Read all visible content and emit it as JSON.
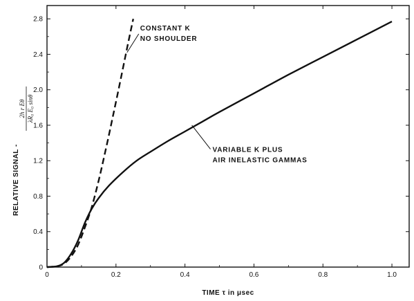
{
  "chart_data": {
    "type": "line",
    "xlabel": "TIME τ in μsec",
    "ylabel": "RELATIVE SIGNAL -",
    "ylabel_formula": {
      "numerator": "2h r Eθ",
      "denominator": "λR₀ E₀ sinθ"
    },
    "xlim": [
      0,
      1.05
    ],
    "ylim": [
      0,
      2.95
    ],
    "x_ticks": [
      "0",
      "0.2",
      "0.4",
      "0.6",
      "0.8",
      "1.0"
    ],
    "y_ticks": [
      "0",
      "0.4",
      "0.8",
      "1.2",
      "1.6",
      "2.0",
      "2.4",
      "2.8"
    ],
    "grid": false,
    "series": [
      {
        "name": "CONSTANT K NO SHOULDER",
        "style": "dashed",
        "x": [
          0,
          0.03,
          0.05,
          0.07,
          0.09,
          0.11,
          0.13,
          0.15,
          0.17,
          0.19,
          0.21,
          0.23,
          0.25
        ],
        "y": [
          0,
          0.01,
          0.04,
          0.12,
          0.25,
          0.45,
          0.68,
          0.98,
          1.32,
          1.68,
          2.05,
          2.43,
          2.8
        ]
      },
      {
        "name": "VARIABLE K PLUS AIR INELASTIC GAMMAS",
        "style": "solid",
        "x": [
          0,
          0.03,
          0.05,
          0.07,
          0.09,
          0.11,
          0.13,
          0.15,
          0.18,
          0.22,
          0.26,
          0.3,
          0.35,
          0.4,
          0.45,
          0.5,
          0.6,
          0.7,
          0.8,
          0.9,
          1.0
        ],
        "y": [
          0,
          0.01,
          0.05,
          0.15,
          0.3,
          0.5,
          0.66,
          0.78,
          0.92,
          1.07,
          1.2,
          1.3,
          1.42,
          1.53,
          1.64,
          1.75,
          1.96,
          2.17,
          2.37,
          2.57,
          2.77
        ]
      }
    ],
    "annotations": [
      {
        "lines": [
          "CONSTANT  K",
          "NO SHOULDER"
        ],
        "points_to": [
          0.23,
          2.42
        ]
      },
      {
        "lines": [
          "VARIABLE K PLUS",
          "AIR INELASTIC GAMMAS"
        ],
        "points_to": [
          0.42,
          1.6
        ]
      }
    ]
  }
}
